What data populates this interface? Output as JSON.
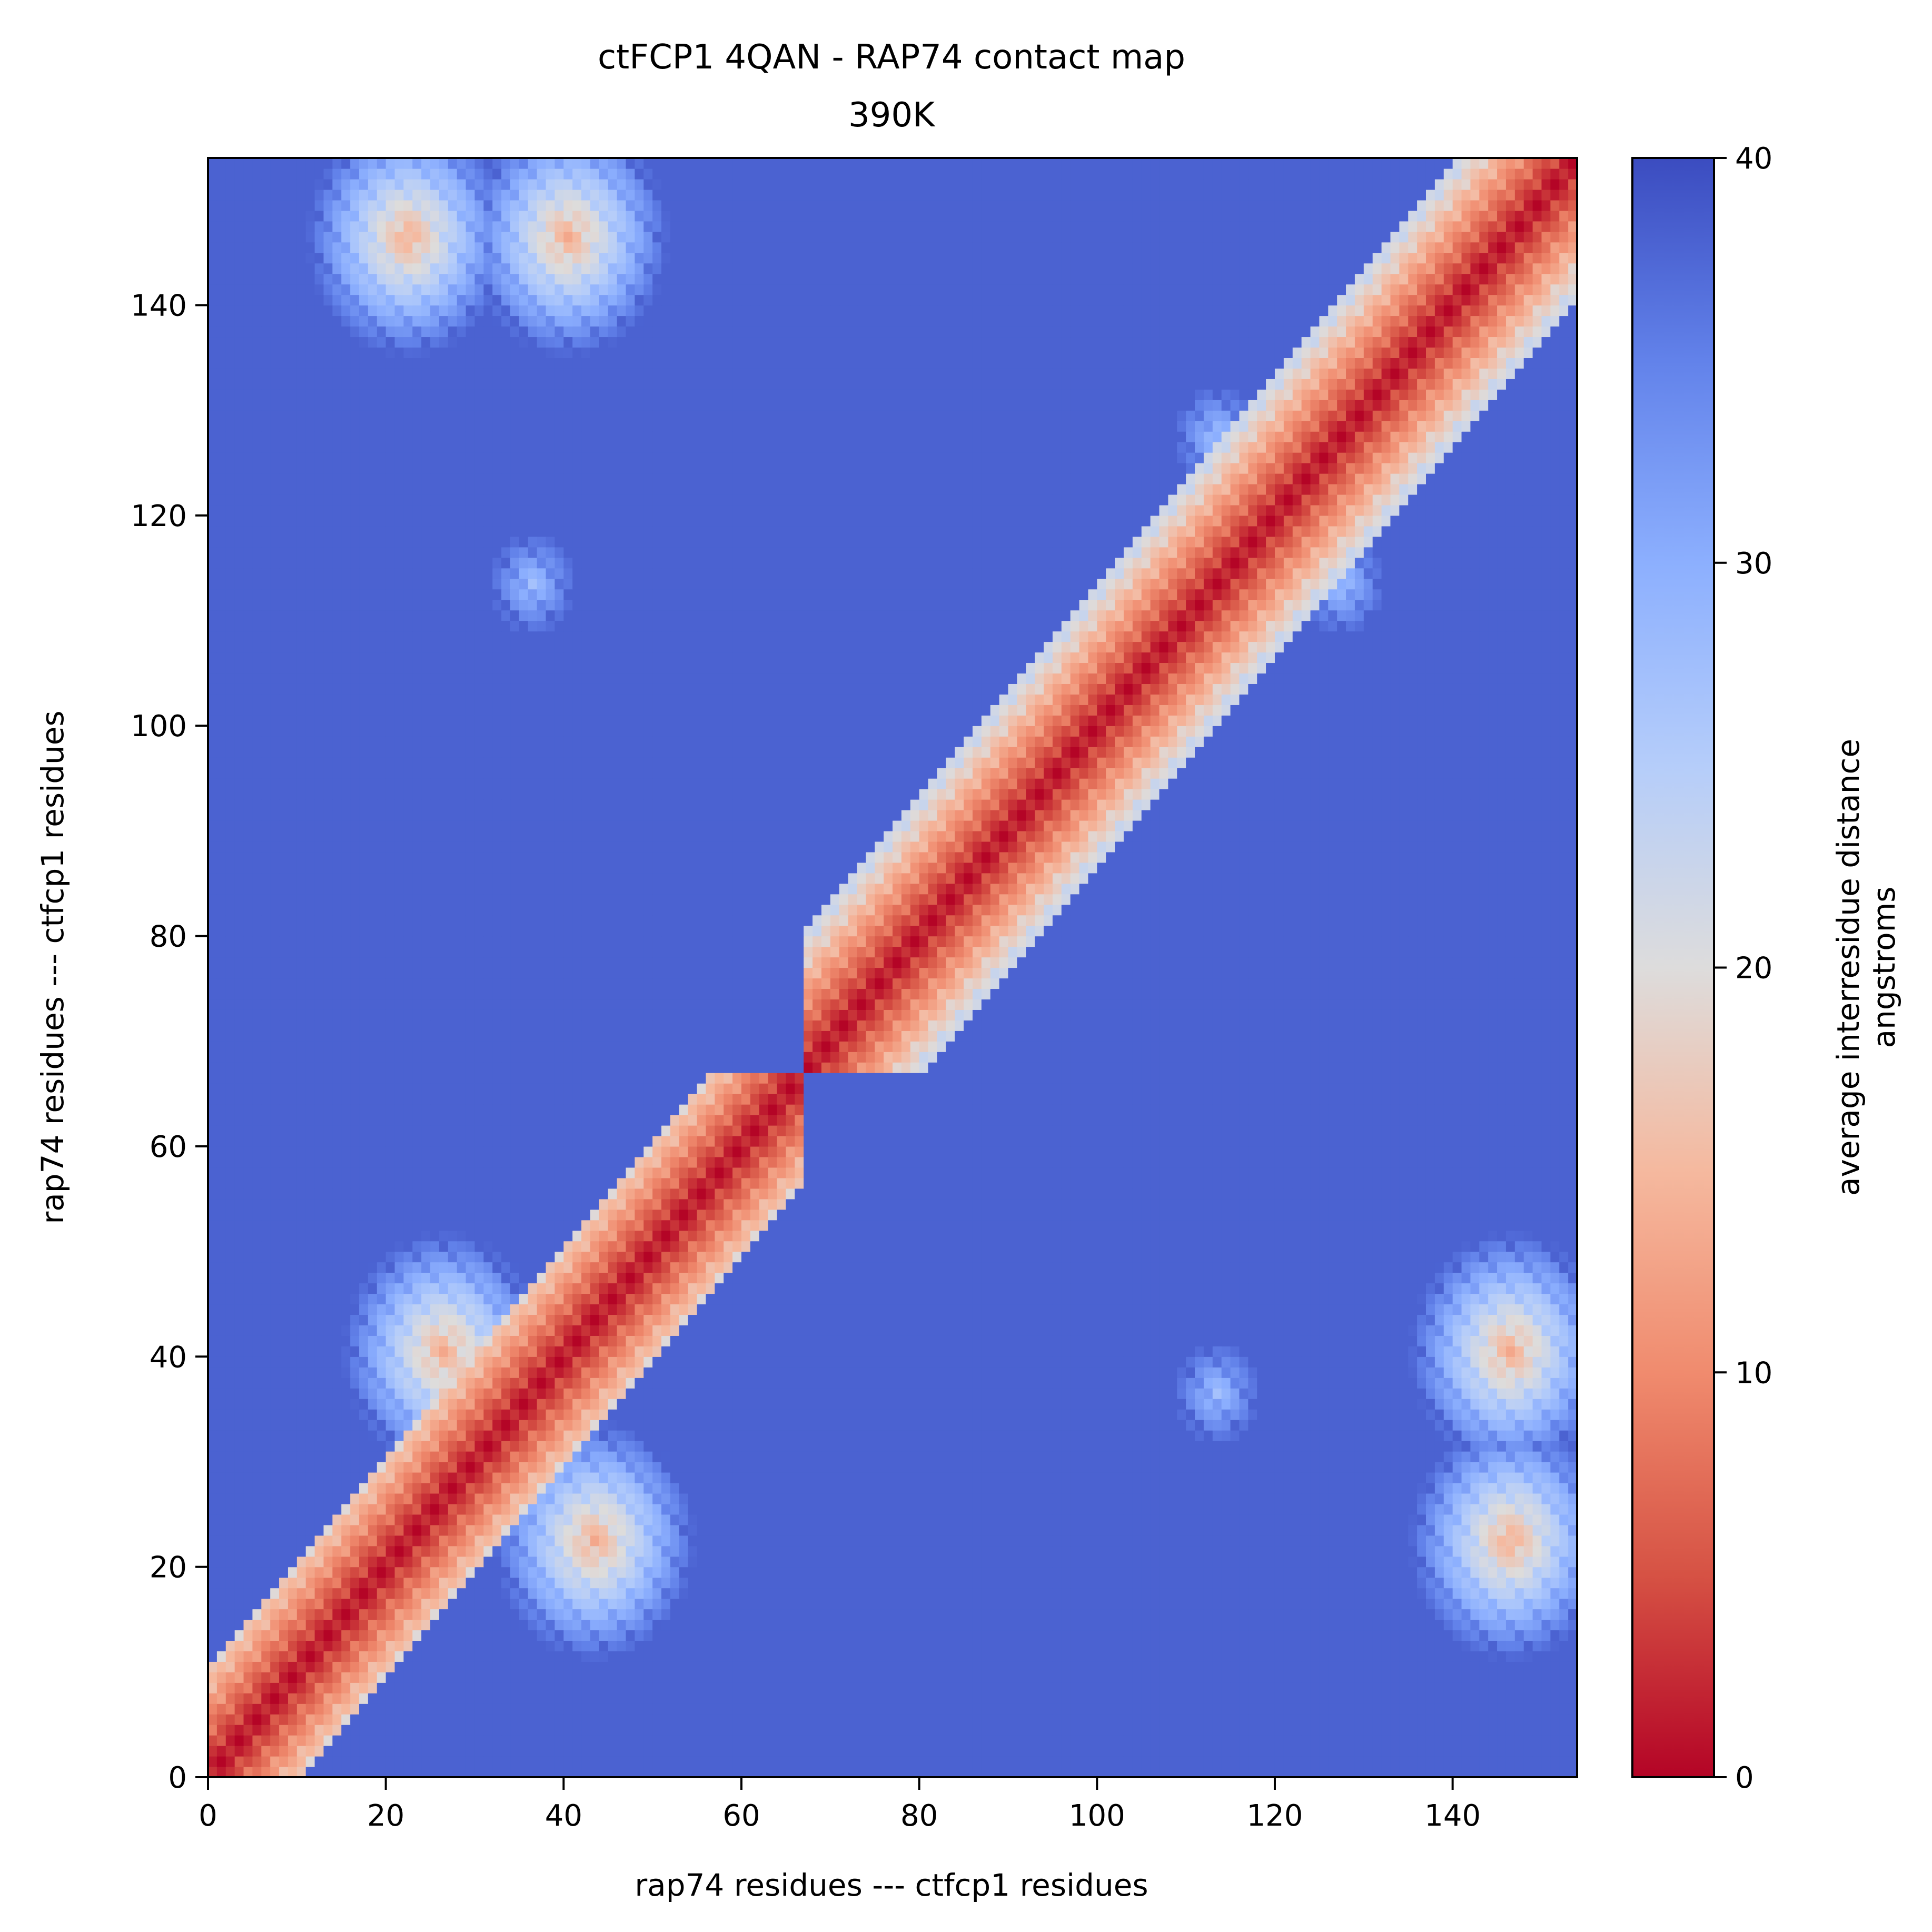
{
  "chart_data": {
    "type": "heatmap",
    "title": "ctFCP1 4QAN - RAP74 contact map",
    "subtitle": "390K",
    "xlabel": "rap74 residues --- ctfcp1 residues",
    "ylabel": "rap74 residues --- ctfcp1 residues",
    "xlim": [
      0,
      154
    ],
    "ylim": [
      0,
      154
    ],
    "x_ticks": [
      "0",
      "20",
      "40",
      "60",
      "80",
      "100",
      "120",
      "140"
    ],
    "y_ticks": [
      "0",
      "20",
      "40",
      "60",
      "80",
      "100",
      "120",
      "140"
    ],
    "colorbar": {
      "label_line1": "average interresidue distance",
      "label_line2": "angstroms",
      "range": [
        0,
        40
      ],
      "ticks": [
        "0",
        "10",
        "20",
        "30",
        "40"
      ],
      "colormap": "coolwarm_r"
    },
    "residues": 154,
    "domain_boundary": 67,
    "background_distance": 38,
    "diagonal_distance": 0,
    "contact_clusters": [
      {
        "x": 22,
        "y": 146,
        "distance": 13
      },
      {
        "x": 40,
        "y": 146,
        "distance": 13
      },
      {
        "x": 36,
        "y": 113,
        "distance": 27
      },
      {
        "x": 26,
        "y": 40,
        "distance": 13
      },
      {
        "x": 43,
        "y": 22,
        "distance": 13
      },
      {
        "x": 146,
        "y": 22,
        "distance": 13
      },
      {
        "x": 146,
        "y": 40,
        "distance": 13
      },
      {
        "x": 113,
        "y": 36,
        "distance": 27
      },
      {
        "x": 113,
        "y": 127,
        "distance": 27
      },
      {
        "x": 127,
        "y": 113,
        "distance": 27
      }
    ]
  }
}
